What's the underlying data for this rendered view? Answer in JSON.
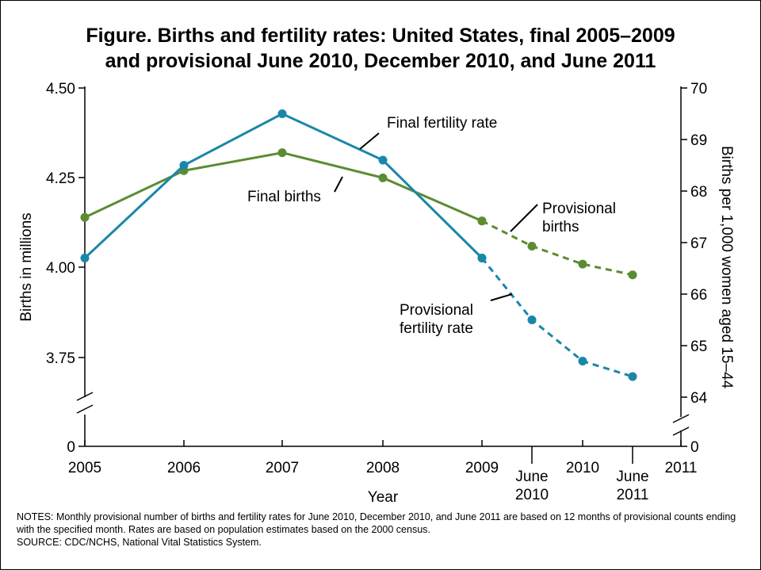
{
  "title_line1": "Figure. Births and fertility rates: United States, final 2005–2009",
  "title_line2": "and provisional June 2010, December 2010, and June 2011",
  "notes": "NOTES: Monthly provisional number of births and fertility rates for June 2010, December 2010, and June 2011 are based on 12 months of provisional counts ending with the specified month. Rates are based on population estimates based on the 2000 census.",
  "source": "SOURCE: CDC/NCHS, National Vital Statistics System.",
  "colors": {
    "births": "#5b8c32",
    "fertility": "#1a87a8",
    "axis": "#000000"
  },
  "chart_data": {
    "type": "line",
    "xlabel": "Year",
    "ylabel_left": "Births in millions",
    "ylabel_right": "Births per 1,000 women aged 15–44",
    "x_ticks": [
      "2005",
      "2006",
      "2007",
      "2008",
      "2009",
      "June|2010",
      "2010",
      "June|2011",
      "2011"
    ],
    "y_left_ticks": [
      "4.50",
      "4.25",
      "4.00",
      "3.75",
      "0"
    ],
    "y_right_ticks": [
      "70",
      "69",
      "68",
      "67",
      "66",
      "65",
      "64",
      "0"
    ],
    "y_left_range": [
      3.75,
      4.5
    ],
    "y_right_range": [
      64,
      70
    ],
    "axis_break": true,
    "series": [
      {
        "name": "Final births",
        "axis": "left",
        "x": [
          "2005",
          "2006",
          "2007",
          "2008",
          "2009"
        ],
        "values": [
          4.14,
          4.27,
          4.32,
          4.25,
          4.13
        ],
        "style": "solid"
      },
      {
        "name": "Provisional births",
        "axis": "left",
        "x": [
          "2009",
          "June 2010",
          "December 2010",
          "June 2011"
        ],
        "values": [
          4.13,
          4.06,
          4.01,
          3.98
        ],
        "style": "dashed"
      },
      {
        "name": "Final fertility rate",
        "axis": "right",
        "x": [
          "2005",
          "2006",
          "2007",
          "2008",
          "2009"
        ],
        "values": [
          66.7,
          68.5,
          69.5,
          68.6,
          66.7
        ],
        "style": "solid"
      },
      {
        "name": "Provisional fertility rate",
        "axis": "right",
        "x": [
          "2009",
          "June 2010",
          "December 2010",
          "June 2011"
        ],
        "values": [
          66.7,
          65.5,
          64.7,
          64.4
        ],
        "style": "dashed"
      }
    ],
    "annotations": [
      {
        "series": "Final fertility rate",
        "lines": [
          "Final fertility rate"
        ]
      },
      {
        "series": "Final births",
        "lines": [
          "Final births"
        ]
      },
      {
        "series": "Provisional births",
        "lines": [
          "Provisional",
          "births"
        ]
      },
      {
        "series": "Provisional fertility rate",
        "lines": [
          "Provisional",
          "fertility rate"
        ]
      }
    ]
  }
}
